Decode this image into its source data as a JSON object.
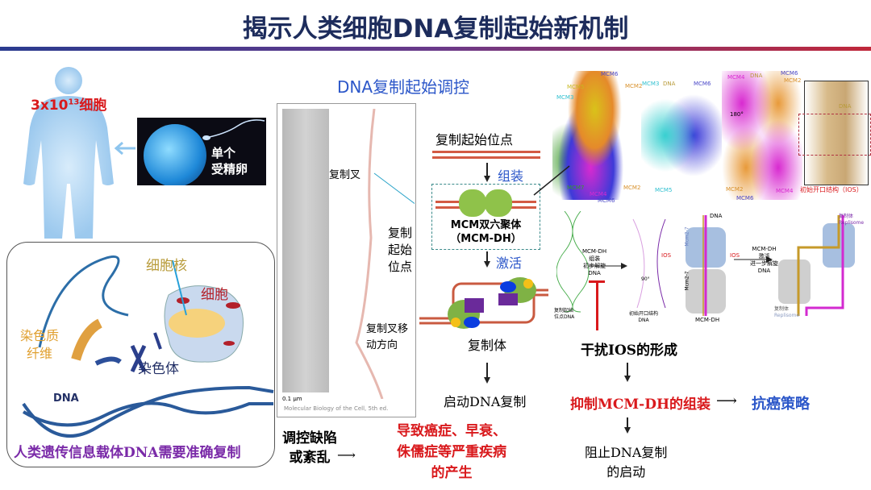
{
  "title": "揭示人类细胞DNA复制起始新机制",
  "left": {
    "cell_count": "3x10",
    "cell_count_exp": "13",
    "cell_count_unit": "细胞",
    "egg_label_1": "单个",
    "egg_label_2": "受精卵",
    "nucleus": "细胞核",
    "cell": "细胞",
    "chromatin_1": "染色质",
    "chromatin_2": "纤维",
    "chromosome": "染色体",
    "dna": "DNA",
    "caption": "人类遗传信息载体DNA需要准确复制"
  },
  "center": {
    "heading": "DNA复制起始调控",
    "fork": "复制叉",
    "origin_1": "复制",
    "origin_2": "起始",
    "origin_3": "位点",
    "fork_dir_1": "复制叉移",
    "fork_dir_2": "动方向",
    "scale": "0.1 μm",
    "citation": "Molecular Biology of the Cell, 5th ed.",
    "flow": {
      "origin": "复制起始位点",
      "assembly": "组装",
      "mcm_dh_1": "MCM双六聚体",
      "mcm_dh_2": "（MCM-DH）",
      "activation": "激活",
      "replisome": "复制体",
      "start": "启动DNA复制"
    },
    "defect_1": "调控缺陷",
    "defect_2": "或紊乱",
    "disease_1": "导致癌症、早衰、",
    "disease_2": "侏儒症等严重疾病",
    "disease_3": "的产生"
  },
  "right": {
    "structure_labels": [
      "MCM6",
      "MCM5",
      "MCM2",
      "MCM3",
      "MCM7",
      "MCM4",
      "MCM6",
      "MCM2",
      "MCM3",
      "DNA",
      "MCM6",
      "MCM5",
      "MCM4",
      "DNA",
      "MCM6",
      "MCM2",
      "MCM4",
      "MCM6",
      "MCM2",
      "DNA"
    ],
    "rotation": "180°",
    "ios_label": "初始开口结构（IOS）",
    "diagram": {
      "origin_dna_1": "复制起始",
      "origin_dna_2": "位点DNA",
      "step1_1": "MCM-DH",
      "step1_2": "组装",
      "step1_3": "初步解旋",
      "step1_4": "DNA",
      "rot90": "90°",
      "ios": "IOS",
      "open_1": "初始开口结构",
      "open_2": "DNA",
      "dna": "DNA",
      "mcm_top": "Mcm2-7",
      "mcm_bottom": "Mcm2-7",
      "ios2": "IOS",
      "mcm_dh": "MCM-DH",
      "step2_1": "MCM-DH",
      "step2_2": "激活",
      "step2_3": "进一步解旋",
      "step2_4": "DNA",
      "rep_cn": "复制体",
      "rep_en": "Replisome"
    },
    "interfere": "干扰IOS的形成",
    "inhibit": "抑制MCM-DH的组装",
    "anticancer": "抗癌策略",
    "block_1": "阻止DNA复制",
    "block_2": "的启动"
  },
  "colors": {
    "title": "#1d2c5c",
    "red": "#d9191c",
    "blue": "#2c57c9",
    "purple": "#7a2aa8"
  }
}
